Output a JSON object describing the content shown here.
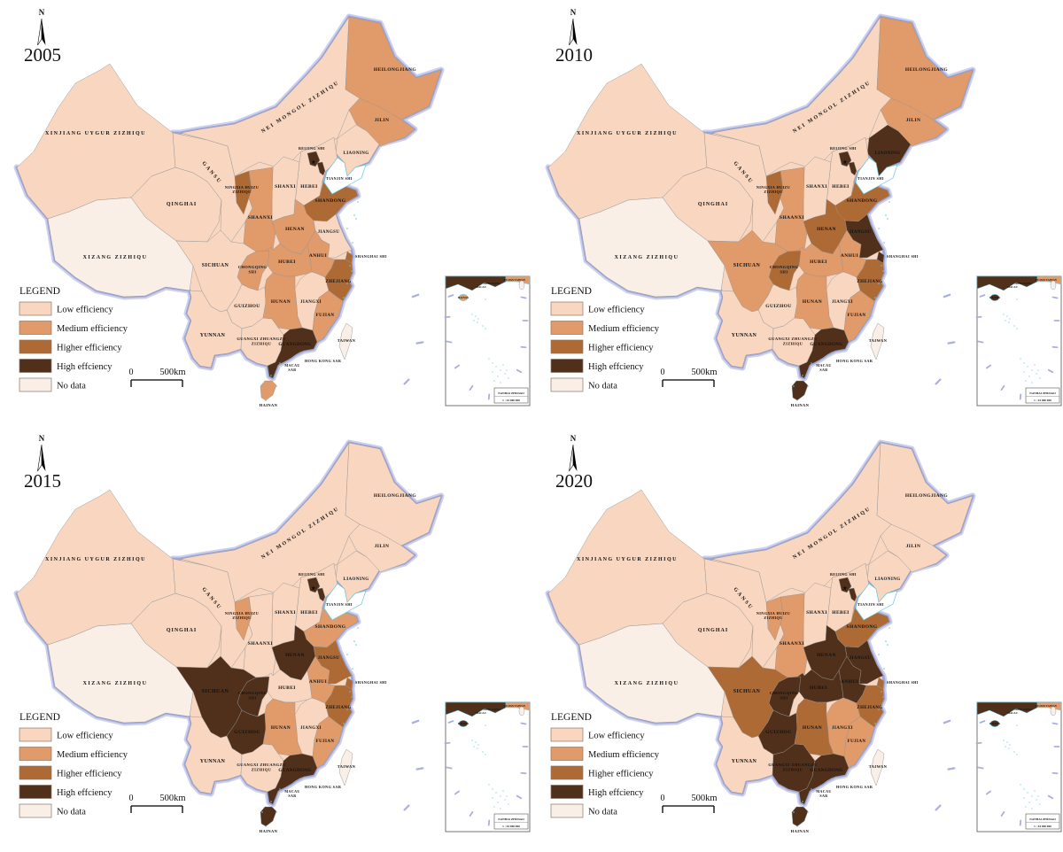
{
  "panels": [
    {
      "year": "2005",
      "classes": {
        "heilongjiang": "medium",
        "jilin": "medium",
        "liaoning": "low",
        "neimongol": "low",
        "xinjiang": "low",
        "xizang": "nodata",
        "qinghai": "low",
        "gansu": "low",
        "ningxia": "higher",
        "shaanxi": "medium",
        "shanxi": "low",
        "hebei": "low",
        "beijing": "high",
        "tianjin": "high",
        "shandong": "higher",
        "henan": "medium",
        "jiangsu": "low",
        "anhui": "medium",
        "shanghai": "higher",
        "zhejiang": "higher",
        "fujian": "medium",
        "jiangxi": "low",
        "hubei": "medium",
        "chongqing": "medium",
        "sichuan": "low",
        "guizhou": "low",
        "yunnan": "low",
        "hunan": "medium",
        "guangxi": "low",
        "guangdong": "high",
        "hainan": "medium",
        "taiwan": "nodata"
      }
    },
    {
      "year": "2010",
      "classes": {
        "heilongjiang": "medium",
        "jilin": "medium",
        "liaoning": "high",
        "neimongol": "low",
        "xinjiang": "low",
        "xizang": "nodata",
        "qinghai": "low",
        "gansu": "low",
        "ningxia": "higher",
        "shaanxi": "medium",
        "shanxi": "low",
        "hebei": "low",
        "beijing": "high",
        "tianjin": "high",
        "shandong": "higher",
        "henan": "higher",
        "jiangsu": "high",
        "anhui": "medium",
        "shanghai": "high",
        "zhejiang": "higher",
        "fujian": "medium",
        "jiangxi": "low",
        "hubei": "medium",
        "chongqing": "higher",
        "sichuan": "medium",
        "guizhou": "low",
        "yunnan": "low",
        "hunan": "medium",
        "guangxi": "low",
        "guangdong": "high",
        "hainan": "high",
        "taiwan": "nodata"
      }
    },
    {
      "year": "2015",
      "classes": {
        "heilongjiang": "low",
        "jilin": "low",
        "liaoning": "low",
        "neimongol": "low",
        "xinjiang": "low",
        "xizang": "nodata",
        "qinghai": "low",
        "gansu": "low",
        "ningxia": "medium",
        "shaanxi": "low",
        "shanxi": "low",
        "hebei": "low",
        "beijing": "high",
        "tianjin": "high",
        "shandong": "medium",
        "henan": "high",
        "jiangsu": "higher",
        "anhui": "medium",
        "shanghai": "higher",
        "zhejiang": "higher",
        "fujian": "medium",
        "jiangxi": "low",
        "hubei": "low",
        "chongqing": "high",
        "sichuan": "high",
        "guizhou": "high",
        "yunnan": "low",
        "hunan": "medium",
        "guangxi": "low",
        "guangdong": "high",
        "hainan": "high",
        "taiwan": "nodata"
      }
    },
    {
      "year": "2020",
      "classes": {
        "heilongjiang": "low",
        "jilin": "low",
        "liaoning": "low",
        "neimongol": "low",
        "xinjiang": "low",
        "xizang": "nodata",
        "qinghai": "low",
        "gansu": "low",
        "ningxia": "medium",
        "shaanxi": "medium",
        "shanxi": "low",
        "hebei": "low",
        "beijing": "high",
        "tianjin": "high",
        "shandong": "higher",
        "henan": "high",
        "jiangsu": "high",
        "anhui": "high",
        "shanghai": "higher",
        "zhejiang": "higher",
        "fujian": "medium",
        "jiangxi": "medium",
        "hubei": "high",
        "chongqing": "high",
        "sichuan": "higher",
        "guizhou": "high",
        "yunnan": "low",
        "hunan": "higher",
        "guangxi": "high",
        "guangdong": "high",
        "hainan": "high",
        "taiwan": "nodata"
      }
    }
  ],
  "legend": {
    "title": "LEGEND",
    "items": [
      {
        "key": "low",
        "label": "Low efficiency",
        "color": "#f8d6c0"
      },
      {
        "key": "medium",
        "label": "Medium efficiency",
        "color": "#e19a69"
      },
      {
        "key": "higher",
        "label": "Higher efficiency",
        "color": "#ad6a35"
      },
      {
        "key": "high",
        "label": "High effciency",
        "color": "#50301b"
      },
      {
        "key": "nodata",
        "label": "No data",
        "color": "#f9efe6"
      }
    ]
  },
  "scale_bar": {
    "start": "0",
    "end": "500km"
  },
  "north_arrow_label": "N",
  "provinces": [
    {
      "id": "xinjiang",
      "label_lines": [
        "XINJIANG UYGUR ZIZHIQU"
      ]
    },
    {
      "id": "xizang",
      "label_lines": [
        "XIZANG ZIZHIQU"
      ]
    },
    {
      "id": "qinghai",
      "label_lines": [
        "QINGHAI"
      ]
    },
    {
      "id": "gansu",
      "label_lines": [
        "GANSU"
      ]
    },
    {
      "id": "neimongol",
      "label_lines": [
        "NEI MONGOL ZIZHIQU"
      ]
    },
    {
      "id": "heilongjiang",
      "label_lines": [
        "HEILONGJIANG"
      ]
    },
    {
      "id": "jilin",
      "label_lines": [
        "JILIN"
      ]
    },
    {
      "id": "liaoning",
      "label_lines": [
        "LIAONING"
      ]
    },
    {
      "id": "hebei",
      "label_lines": [
        "HEBEI"
      ]
    },
    {
      "id": "beijing",
      "label_lines": [
        "BEIJING SHI"
      ]
    },
    {
      "id": "tianjin",
      "label_lines": [
        "TIANJIN SHI"
      ]
    },
    {
      "id": "shanxi",
      "label_lines": [
        "SHANXI"
      ]
    },
    {
      "id": "shandong",
      "label_lines": [
        "SHANDONG"
      ]
    },
    {
      "id": "ningxia",
      "label_lines": [
        "NINGXIA HUIZU",
        "ZIZHIQU"
      ]
    },
    {
      "id": "shaanxi",
      "label_lines": [
        "SHAANXI"
      ]
    },
    {
      "id": "henan",
      "label_lines": [
        "HENAN"
      ]
    },
    {
      "id": "jiangsu",
      "label_lines": [
        "JIANGSU"
      ]
    },
    {
      "id": "anhui",
      "label_lines": [
        "ANHUI"
      ]
    },
    {
      "id": "shanghai",
      "label_lines": [
        "SHANGHAI SHI"
      ]
    },
    {
      "id": "zhejiang",
      "label_lines": [
        "ZHEJIANG"
      ]
    },
    {
      "id": "hubei",
      "label_lines": [
        "HUBEI"
      ]
    },
    {
      "id": "chongqing",
      "label_lines": [
        "CHONGQING",
        "SHI"
      ]
    },
    {
      "id": "sichuan",
      "label_lines": [
        "SICHUAN"
      ]
    },
    {
      "id": "guizhou",
      "label_lines": [
        "GUIZHOU"
      ]
    },
    {
      "id": "yunnan",
      "label_lines": [
        "YUNNAN"
      ]
    },
    {
      "id": "hunan",
      "label_lines": [
        "HUNAN"
      ]
    },
    {
      "id": "jiangxi",
      "label_lines": [
        "JIANGXI"
      ]
    },
    {
      "id": "fujian",
      "label_lines": [
        "FUJIAN"
      ]
    },
    {
      "id": "guangxi",
      "label_lines": [
        "GUANGXI ZHUANGZU",
        "ZIZHIQU"
      ]
    },
    {
      "id": "guangdong",
      "label_lines": [
        "GUANGDONG"
      ]
    },
    {
      "id": "hainan",
      "label_lines": [
        "HAINAN"
      ]
    },
    {
      "id": "taiwan",
      "label_lines": [
        "TAIWAN"
      ]
    }
  ],
  "annotations": {
    "beijing_star": "★",
    "hong_kong": "HONG KONG SAR",
    "macau_lines": [
      "MACAU",
      "SAR"
    ]
  },
  "inset": {
    "labels": {
      "fujian_taiwan": "FUJIAN TAIWAN",
      "hong_kong": "HONG KONG",
      "macau": "MACAU",
      "hainan": "HAINAN"
    },
    "caption_lines": [
      "NANHAI ZHUDAO",
      "1 : 44 000 000"
    ]
  },
  "colors": {
    "country_fill": "#f8d6c0",
    "glow_outer": "#ccd0ec",
    "glow_inner": "#9fa7d8",
    "province_border": "#949494",
    "coast_cyan": "#63c8dc",
    "dash_mark": "#aab0dd",
    "text": "#111111",
    "inset_border": "#666666"
  }
}
